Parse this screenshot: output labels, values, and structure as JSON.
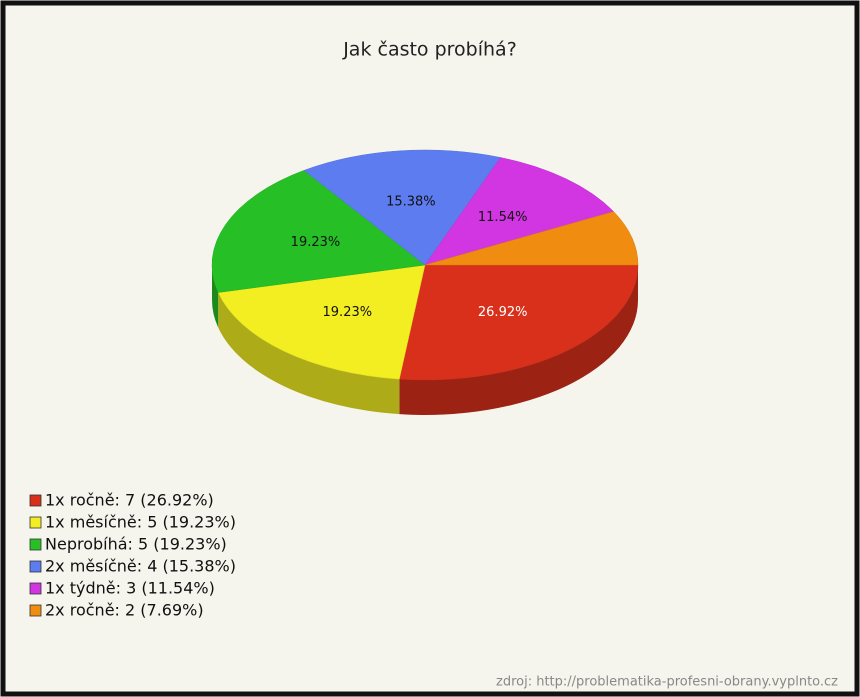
{
  "chart_data": {
    "type": "pie",
    "title": "Jak často probíhá?",
    "values": [
      26.92,
      19.23,
      19.23,
      15.38,
      11.54,
      7.69
    ],
    "value_labels": [
      "26.92%",
      "19.23%",
      "19.23%",
      "15.38%",
      "11.54%",
      null
    ],
    "colors": [
      "#d8301a",
      "#f2ee22",
      "#26c026",
      "#5c7cf0",
      "#d236e2",
      "#f08c10"
    ],
    "legend": [
      "1x ročně: 7 (26.92%)",
      "1x měsíčně: 5 (19.23%)",
      "Neprobíhá: 5 (19.23%)",
      "2x měsíčně: 4 (15.38%)",
      "1x týdně: 3 (11.54%)",
      "2x ročně: 2 (7.69%)"
    ],
    "source": "zdroj: http://problematika-profesni-obrany.vyplnto.cz"
  }
}
